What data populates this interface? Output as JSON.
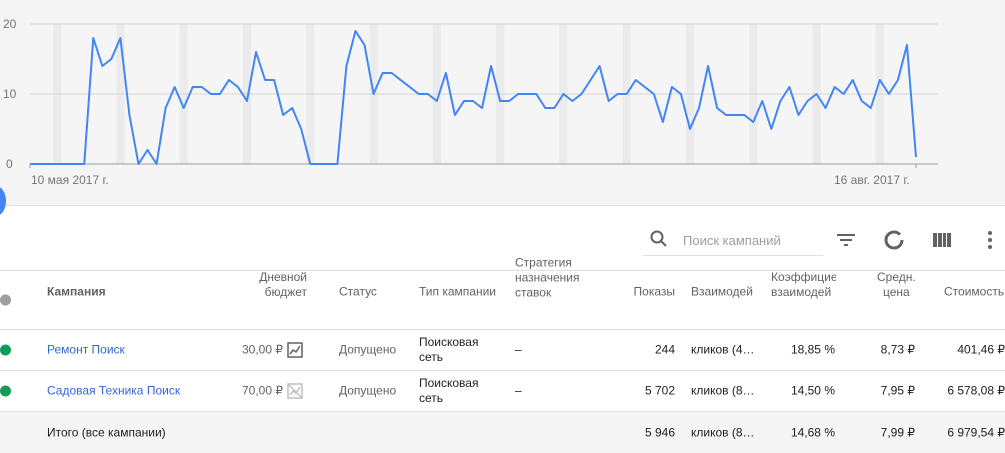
{
  "chart_data": {
    "type": "line",
    "y_ticks": [
      "0",
      "10",
      "20"
    ],
    "ylim": [
      0,
      20
    ],
    "x_start_label": "10 мая 2017 г.",
    "x_end_label": "16 авг. 2017 г.",
    "x_range": [
      "2017-05-10",
      "2017-08-16"
    ],
    "grid": true,
    "weekend_shading": true,
    "line_color": "#4285f4",
    "series": [
      {
        "values": [
          0,
          0,
          0,
          0,
          0,
          0,
          0,
          18,
          14,
          15,
          18,
          7,
          0,
          2,
          0,
          8,
          11,
          8,
          11,
          11,
          10,
          10,
          12,
          11,
          9,
          16,
          12,
          12,
          7,
          8,
          5,
          0,
          0,
          0,
          0,
          14,
          19,
          17,
          10,
          13,
          13,
          12,
          11,
          10,
          10,
          9,
          13,
          7,
          9,
          9,
          8,
          14,
          9,
          9,
          10,
          10,
          10,
          8,
          8,
          10,
          9,
          10,
          12,
          14,
          9,
          10,
          10,
          12,
          11,
          10,
          6,
          11,
          10,
          5,
          8,
          14,
          8,
          7,
          7,
          7,
          6,
          9,
          5,
          9,
          11,
          7,
          9,
          10,
          8,
          11,
          10,
          12,
          9,
          8,
          12,
          10,
          12,
          17,
          1
        ]
      }
    ]
  },
  "toolbar": {
    "search_placeholder": "Поиск кампаний",
    "icons": [
      "search-icon",
      "filter-icon",
      "segment-icon",
      "columns-icon",
      "more-icon"
    ]
  },
  "table": {
    "headers": {
      "campaign": "Кампания",
      "budget": [
        "Дневной",
        "бюджет"
      ],
      "status": "Статус",
      "type": "Тип кампании",
      "strategy": [
        "Стратегия",
        "назначения",
        "ставок"
      ],
      "impressions": "Показы",
      "interactions": "Взаимодей",
      "rate": [
        "Коэффицие",
        "взаимодей"
      ],
      "avg_cost": [
        "Средн.",
        "цена"
      ],
      "cost": "Стоимость"
    },
    "rows": [
      {
        "status_color": "#0f9d58",
        "campaign": "Ремонт Поиск",
        "budget": "30,00 ₽",
        "budget_icon": "chart-icon",
        "status": "Допущено",
        "type": [
          "Поисковая",
          "сеть"
        ],
        "strategy": "–",
        "impressions": "244",
        "interactions": "кликов (4…",
        "rate": "18,85 %",
        "avg_cost": "8,73 ₽",
        "cost": "401,46 ₽"
      },
      {
        "status_color": "#0f9d58",
        "campaign": "Садовая Техника Поиск",
        "budget": "70,00 ₽",
        "budget_icon": "chart-disabled-icon",
        "status": "Допущено",
        "type": [
          "Поисковая",
          "сеть"
        ],
        "strategy": "–",
        "impressions": "5 702",
        "interactions": "кликов (8…",
        "rate": "14,50 %",
        "avg_cost": "7,95 ₽",
        "cost": "6 578,08 ₽"
      }
    ],
    "total": {
      "label": "Итого (все кампании)",
      "impressions": "5 946",
      "interactions": "кликов (8…",
      "rate": "14,68 %",
      "avg_cost": "7,99 ₽",
      "cost": "6 979,54 ₽"
    }
  }
}
